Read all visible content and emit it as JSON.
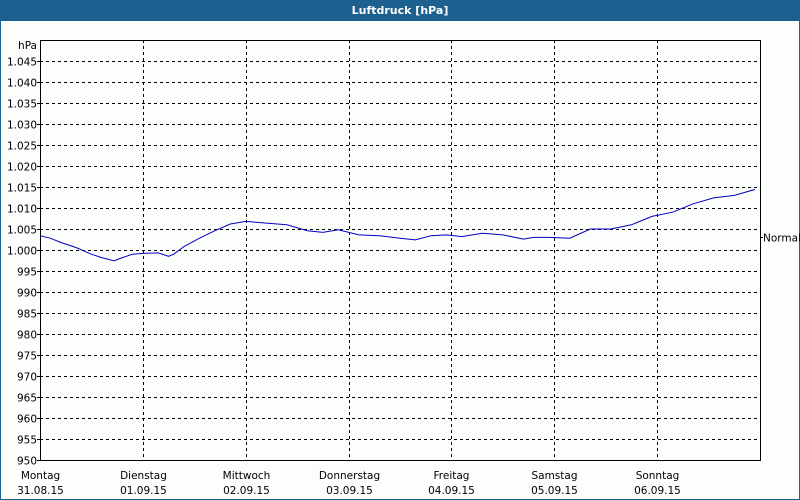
{
  "window": {
    "title": "Luftdruck [hPa]"
  },
  "colors": {
    "titlebar": "#1c6090",
    "line": "#0000c0",
    "grid": "#000000",
    "background": "#fcfefc"
  },
  "chart_data": {
    "type": "line",
    "title": "Luftdruck [hPa]",
    "ylabel": "hPa",
    "xlabel": "",
    "ylim": [
      950,
      1050
    ],
    "y_ticks": [
      "1.045",
      "1.040",
      "1.035",
      "1.030",
      "1.025",
      "1.020",
      "1.015",
      "1.010",
      "1.005",
      "1.000",
      "995",
      "990",
      "985",
      "980",
      "975",
      "970",
      "965",
      "960",
      "955",
      "950"
    ],
    "x_ticks": [
      {
        "day": "Montag",
        "date": "31.08.15"
      },
      {
        "day": "Dienstag",
        "date": "01.09.15"
      },
      {
        "day": "Mittwoch",
        "date": "02.09.15"
      },
      {
        "day": "Donnerstag",
        "date": "03.09.15"
      },
      {
        "day": "Freitag",
        "date": "04.09.15"
      },
      {
        "day": "Samstag",
        "date": "05.09.15"
      },
      {
        "day": "Sonntag",
        "date": "06.09.15"
      }
    ],
    "reference_line": {
      "label": "Normal",
      "value": 1003
    },
    "grid": true,
    "series": [
      {
        "name": "Luftdruck",
        "x_days": [
          0,
          0.1,
          0.2,
          0.35,
          0.5,
          0.6,
          0.72,
          0.8,
          0.9,
          1.0,
          1.15,
          1.25,
          1.3,
          1.4,
          1.55,
          1.7,
          1.85,
          2.0,
          2.2,
          2.4,
          2.6,
          2.75,
          2.9,
          3.1,
          3.3,
          3.5,
          3.65,
          3.8,
          3.95,
          4.1,
          4.3,
          4.5,
          4.7,
          4.8,
          4.95,
          5.15,
          5.35,
          5.55,
          5.75,
          5.95,
          6.15,
          6.35,
          6.55,
          6.75,
          6.95
        ],
        "values": [
          1003.4,
          1002.8,
          1001.8,
          1000.6,
          999.0,
          998.2,
          997.4,
          998.2,
          999.0,
          999.2,
          999.3,
          998.5,
          999.0,
          1000.8,
          1002.8,
          1004.6,
          1006.2,
          1006.8,
          1006.4,
          1006.0,
          1004.6,
          1004.2,
          1004.8,
          1003.6,
          1003.4,
          1002.8,
          1002.4,
          1003.4,
          1003.6,
          1003.2,
          1004.0,
          1003.6,
          1002.6,
          1003.0,
          1003.0,
          1002.8,
          1005.0,
          1005.0,
          1006.0,
          1008.0,
          1009.0,
          1011.0,
          1012.4,
          1013.0,
          1014.4
        ]
      }
    ]
  }
}
